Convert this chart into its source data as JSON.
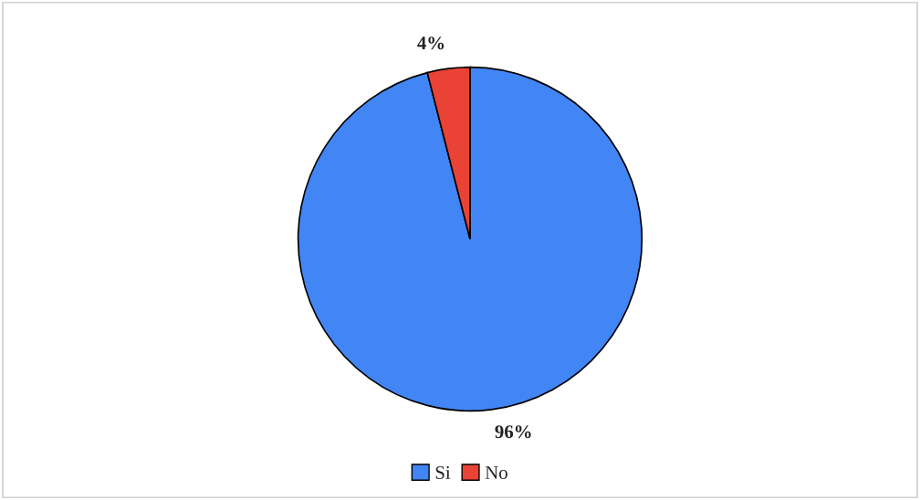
{
  "chart_data": {
    "type": "pie",
    "categories": [
      "Si",
      "No"
    ],
    "values": [
      96,
      4
    ],
    "colors": [
      "#4285f4",
      "#ea4335"
    ],
    "value_labels": [
      "96%",
      "4%"
    ],
    "legend": "bottom"
  }
}
